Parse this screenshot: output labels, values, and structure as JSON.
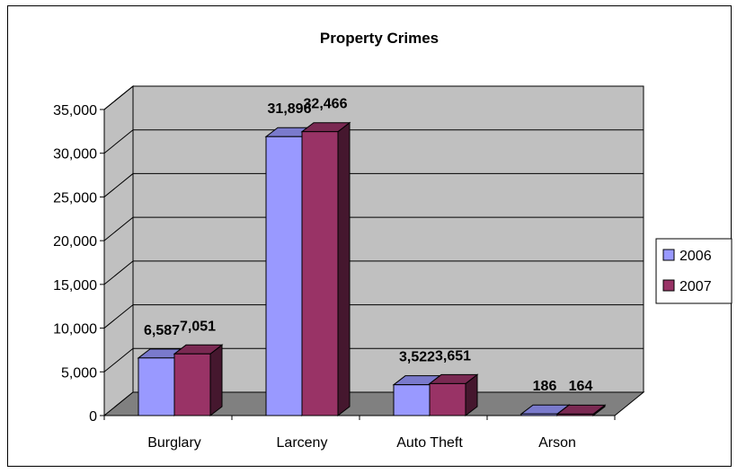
{
  "chart_data": {
    "type": "bar",
    "title": "Property Crimes",
    "categories": [
      "Burglary",
      "Larceny",
      "Auto Theft",
      "Arson"
    ],
    "series": [
      {
        "name": "2006",
        "values": [
          6587,
          31896,
          3522,
          186
        ],
        "labels": [
          "6,587",
          "31,896",
          "3,522",
          "186"
        ],
        "color": "#9999ff"
      },
      {
        "name": "2007",
        "values": [
          7051,
          32466,
          3651,
          164
        ],
        "labels": [
          "7,051",
          "32,466",
          "3,651",
          "164"
        ],
        "color": "#993366"
      }
    ],
    "ylim": [
      0,
      35000
    ],
    "yticks": [
      "0",
      "5,000",
      "10,000",
      "15,000",
      "20,000",
      "25,000",
      "30,000",
      "35,000"
    ],
    "ytick_values": [
      0,
      5000,
      10000,
      15000,
      20000,
      25000,
      30000,
      35000
    ],
    "grid": true,
    "legend": "right",
    "xlabel": "",
    "ylabel": ""
  }
}
